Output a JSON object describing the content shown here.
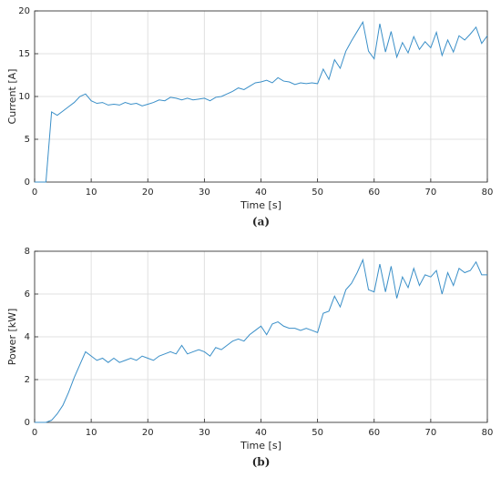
{
  "chart_data": [
    {
      "type": "line",
      "xlabel": "Time [s]",
      "ylabel": "Current [A]",
      "caption": "(a)",
      "color": "#3a8fc8",
      "grid": true,
      "xlim": [
        0,
        80
      ],
      "xticks": [
        0,
        10,
        20,
        30,
        40,
        50,
        60,
        70,
        80
      ],
      "ylim": [
        0,
        20
      ],
      "yticks": [
        0,
        5,
        10,
        15,
        20
      ],
      "x": [
        0,
        1,
        2,
        3,
        4,
        5,
        6,
        7,
        8,
        9,
        10,
        11,
        12,
        13,
        14,
        15,
        16,
        17,
        18,
        19,
        20,
        21,
        22,
        23,
        24,
        25,
        26,
        27,
        28,
        29,
        30,
        31,
        32,
        33,
        34,
        35,
        36,
        37,
        38,
        39,
        40,
        41,
        42,
        43,
        44,
        45,
        46,
        47,
        48,
        49,
        50,
        51,
        52,
        53,
        54,
        55,
        56,
        57,
        58,
        59,
        60,
        61,
        62,
        63,
        64,
        65,
        66,
        67,
        68,
        69,
        70,
        71,
        72,
        73,
        74,
        75,
        76,
        77,
        78,
        79,
        80
      ],
      "values": [
        0,
        0,
        0,
        8.2,
        7.8,
        8.3,
        8.8,
        9.3,
        10,
        10.3,
        9.5,
        9.2,
        9.3,
        9,
        9.1,
        9,
        9.3,
        9.1,
        9.2,
        8.9,
        9.1,
        9.3,
        9.6,
        9.5,
        9.9,
        9.8,
        9.6,
        9.8,
        9.6,
        9.7,
        9.8,
        9.5,
        9.9,
        10,
        10.3,
        10.6,
        11,
        10.8,
        11.2,
        11.6,
        11.7,
        11.9,
        11.6,
        12.2,
        11.8,
        11.7,
        11.4,
        11.6,
        11.5,
        11.6,
        11.5,
        13.2,
        12,
        14.3,
        13.3,
        15.3,
        16.5,
        17.6,
        18.7,
        15.3,
        14.4,
        18.5,
        15.2,
        17.6,
        14.6,
        16.3,
        15.1,
        17,
        15.5,
        16.4,
        15.7,
        17.5,
        14.8,
        16.6,
        15.2,
        17.1,
        16.6,
        17.3,
        18.1,
        16.2,
        17.1
      ]
    },
    {
      "type": "line",
      "xlabel": "Time [s]",
      "ylabel": "Power [kW]",
      "caption": "(b)",
      "color": "#3a8fc8",
      "grid": true,
      "xlim": [
        0,
        80
      ],
      "xticks": [
        0,
        10,
        20,
        30,
        40,
        50,
        60,
        70,
        80
      ],
      "ylim": [
        0,
        8
      ],
      "yticks": [
        0,
        2,
        4,
        6,
        8
      ],
      "x": [
        0,
        1,
        2,
        3,
        4,
        5,
        6,
        7,
        8,
        9,
        10,
        11,
        12,
        13,
        14,
        15,
        16,
        17,
        18,
        19,
        20,
        21,
        22,
        23,
        24,
        25,
        26,
        27,
        28,
        29,
        30,
        31,
        32,
        33,
        34,
        35,
        36,
        37,
        38,
        39,
        40,
        41,
        42,
        43,
        44,
        45,
        46,
        47,
        48,
        49,
        50,
        51,
        52,
        53,
        54,
        55,
        56,
        57,
        58,
        59,
        60,
        61,
        62,
        63,
        64,
        65,
        66,
        67,
        68,
        69,
        70,
        71,
        72,
        73,
        74,
        75,
        76,
        77,
        78,
        79,
        80
      ],
      "values": [
        0,
        0,
        0,
        0.1,
        0.4,
        0.8,
        1.4,
        2.1,
        2.7,
        3.3,
        3.1,
        2.9,
        3.0,
        2.8,
        3,
        2.8,
        2.9,
        3,
        2.9,
        3.1,
        3,
        2.9,
        3.1,
        3.2,
        3.3,
        3.2,
        3.6,
        3.2,
        3.3,
        3.4,
        3.3,
        3.1,
        3.5,
        3.4,
        3.6,
        3.8,
        3.9,
        3.8,
        4.1,
        4.3,
        4.5,
        4.1,
        4.6,
        4.7,
        4.5,
        4.4,
        4.4,
        4.3,
        4.4,
        4.3,
        4.2,
        5.1,
        5.2,
        5.9,
        5.4,
        6.2,
        6.5,
        7.0,
        7.6,
        6.2,
        6.1,
        7.4,
        6.1,
        7.3,
        5.8,
        6.8,
        6.3,
        7.2,
        6.4,
        6.9,
        6.8,
        7.1,
        6.0,
        7.0,
        6.4,
        7.2,
        7.0,
        7.1,
        7.5,
        6.9,
        6.9
      ]
    }
  ]
}
